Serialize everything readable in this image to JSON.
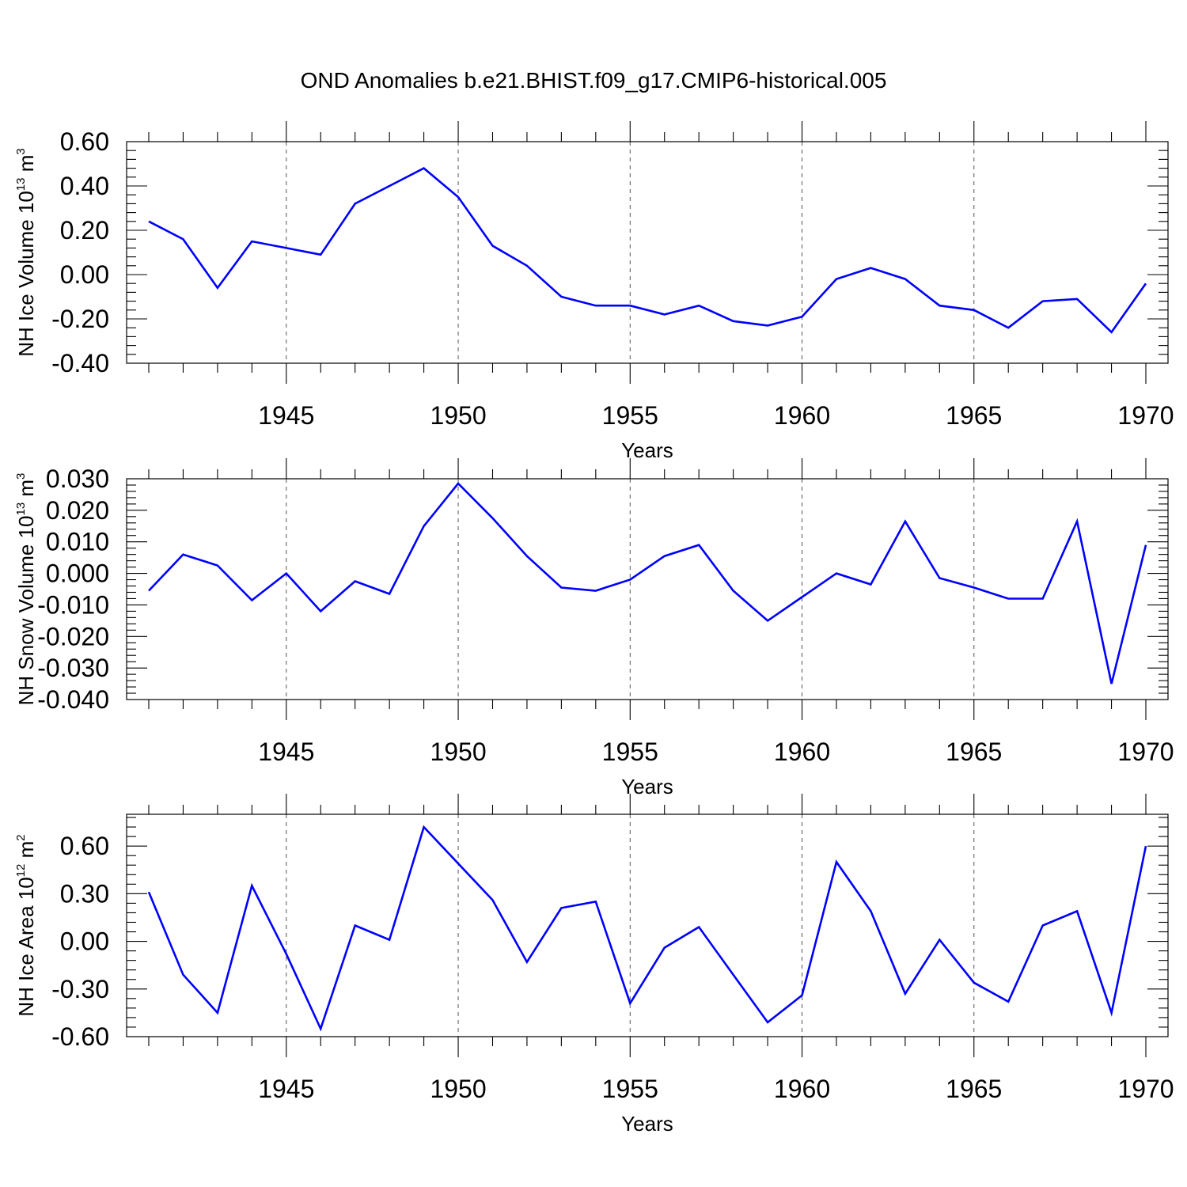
{
  "title": "OND Anomalies b.e21.BHIST.f09_g17.CMIP6-historical.005",
  "colors": {
    "line": "#0000ff",
    "axis": "#000000",
    "grid": "#555555"
  },
  "chart_data": [
    {
      "type": "line",
      "ylabel": "NH Ice Volume 10",
      "ylabel_exp": "13",
      "ylabel_unit": " m",
      "ylabel_unit_exp": "3",
      "xlabel": "Years",
      "xlim": [
        1941,
        1970
      ],
      "ylim": [
        -0.4,
        0.6
      ],
      "yticks": [
        "0.60",
        "0.40",
        "0.20",
        "0.00",
        "-0.20",
        "-0.40"
      ],
      "ytick_values": [
        0.6,
        0.4,
        0.2,
        0.0,
        -0.2,
        -0.4
      ],
      "xticks": [
        "1945",
        "1950",
        "1955",
        "1960",
        "1965",
        "1970"
      ],
      "xtick_values": [
        1945,
        1950,
        1955,
        1960,
        1965,
        1970
      ],
      "x": [
        1941,
        1942,
        1943,
        1944,
        1945,
        1946,
        1947,
        1948,
        1949,
        1950,
        1951,
        1952,
        1953,
        1954,
        1955,
        1956,
        1957,
        1958,
        1959,
        1960,
        1961,
        1962,
        1963,
        1964,
        1965,
        1966,
        1967,
        1968,
        1969,
        1970
      ],
      "values": [
        0.24,
        0.16,
        -0.06,
        0.15,
        0.12,
        0.09,
        0.32,
        0.4,
        0.48,
        0.35,
        0.13,
        0.04,
        -0.1,
        -0.14,
        -0.14,
        -0.18,
        -0.14,
        -0.21,
        -0.23,
        -0.19,
        -0.02,
        0.03,
        -0.02,
        -0.14,
        -0.16,
        -0.24,
        -0.12,
        -0.11,
        -0.26,
        -0.04
      ]
    },
    {
      "type": "line",
      "ylabel": "NH Snow Volume 10",
      "ylabel_exp": "13",
      "ylabel_unit": " m",
      "ylabel_unit_exp": "3",
      "xlabel": "Years",
      "xlim": [
        1941,
        1970
      ],
      "ylim": [
        -0.04,
        0.03
      ],
      "yticks": [
        "0.030",
        "0.020",
        "0.010",
        "0.000",
        "-0.010",
        "-0.020",
        "-0.030",
        "-0.040"
      ],
      "ytick_values": [
        0.03,
        0.02,
        0.01,
        0.0,
        -0.01,
        -0.02,
        -0.03,
        -0.04
      ],
      "xticks": [
        "1945",
        "1950",
        "1955",
        "1960",
        "1965",
        "1970"
      ],
      "xtick_values": [
        1945,
        1950,
        1955,
        1960,
        1965,
        1970
      ],
      "x": [
        1941,
        1942,
        1943,
        1944,
        1945,
        1946,
        1947,
        1948,
        1949,
        1950,
        1951,
        1952,
        1953,
        1954,
        1955,
        1956,
        1957,
        1958,
        1959,
        1960,
        1961,
        1962,
        1963,
        1964,
        1965,
        1966,
        1967,
        1968,
        1969,
        1970
      ],
      "values": [
        -0.0055,
        0.006,
        0.0025,
        -0.0085,
        0.0,
        -0.012,
        -0.0025,
        -0.0065,
        0.015,
        0.0285,
        0.0175,
        0.0055,
        -0.0045,
        -0.0055,
        -0.002,
        0.0055,
        0.009,
        -0.0055,
        -0.015,
        -0.0075,
        0.0,
        -0.0035,
        0.0165,
        -0.0015,
        -0.0045,
        -0.008,
        -0.008,
        0.0165,
        -0.035,
        0.009
      ]
    },
    {
      "type": "line",
      "ylabel": "NH Ice Area 10",
      "ylabel_exp": "12",
      "ylabel_unit": " m",
      "ylabel_unit_exp": "2",
      "xlabel": "Years",
      "xlim": [
        1941,
        1970
      ],
      "ylim": [
        -0.6,
        0.8
      ],
      "yticks": [
        "0.60",
        "0.30",
        "0.00",
        "-0.30",
        "-0.60"
      ],
      "ytick_values": [
        0.6,
        0.3,
        0.0,
        -0.3,
        -0.6
      ],
      "xticks": [
        "1945",
        "1950",
        "1955",
        "1960",
        "1965",
        "1970"
      ],
      "xtick_values": [
        1945,
        1950,
        1955,
        1960,
        1965,
        1970
      ],
      "x": [
        1941,
        1942,
        1943,
        1944,
        1945,
        1946,
        1947,
        1948,
        1949,
        1950,
        1951,
        1952,
        1953,
        1954,
        1955,
        1956,
        1957,
        1958,
        1959,
        1960,
        1961,
        1962,
        1963,
        1964,
        1965,
        1966,
        1967,
        1968,
        1969,
        1970
      ],
      "values": [
        0.31,
        -0.21,
        -0.45,
        0.35,
        -0.08,
        -0.55,
        0.1,
        0.01,
        0.72,
        0.49,
        0.26,
        -0.13,
        0.21,
        0.25,
        -0.39,
        -0.04,
        0.09,
        -0.21,
        -0.51,
        -0.34,
        0.5,
        0.19,
        -0.33,
        0.01,
        -0.26,
        -0.38,
        0.1,
        0.19,
        -0.45,
        0.6
      ]
    }
  ]
}
